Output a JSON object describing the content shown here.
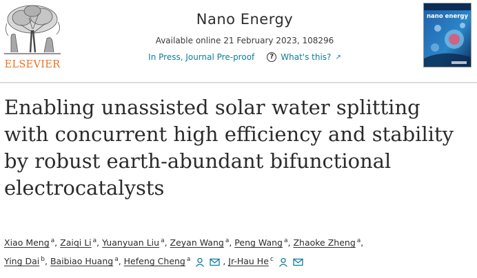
{
  "header": {
    "publisher_logo": "ELSEVIER",
    "publisher_logo_icon": "tree-icon",
    "journal_title": "Nano Energy",
    "availability": "Available online 21 February 2023, 108296",
    "status": "In Press, Journal Pre-proof",
    "whats_this": "What's this?",
    "cover_title": "nano energy",
    "colors": {
      "publisher_orange": "#e9711c",
      "link_teal": "#0c7d9d",
      "cover_blue": "#1f5fa8"
    }
  },
  "article": {
    "title_lines": [
      "Enabling unassisted solar water splitting",
      "with concurrent high efficiency and stability",
      "by robust earth-abundant bifunctional",
      "electrocatalysts"
    ]
  },
  "authors": [
    {
      "name": "Xiao Meng",
      "aff": "a"
    },
    {
      "name": "Zaiqi Li",
      "aff": "a"
    },
    {
      "name": "Yuanyuan Liu",
      "aff": "a"
    },
    {
      "name": "Zeyan Wang",
      "aff": "a"
    },
    {
      "name": "Peng Wang",
      "aff": "a"
    },
    {
      "name": "Zhaoke Zheng",
      "aff": "a"
    },
    {
      "name": "Ying Dai",
      "aff": "b"
    },
    {
      "name": "Baibiao Huang",
      "aff": "a"
    },
    {
      "name": "Hefeng Cheng",
      "aff": "a"
    },
    {
      "name": "Jr-Hau He",
      "aff": "c"
    }
  ],
  "author_icons": {
    "profile": "person-icon",
    "email": "envelope-icon"
  }
}
